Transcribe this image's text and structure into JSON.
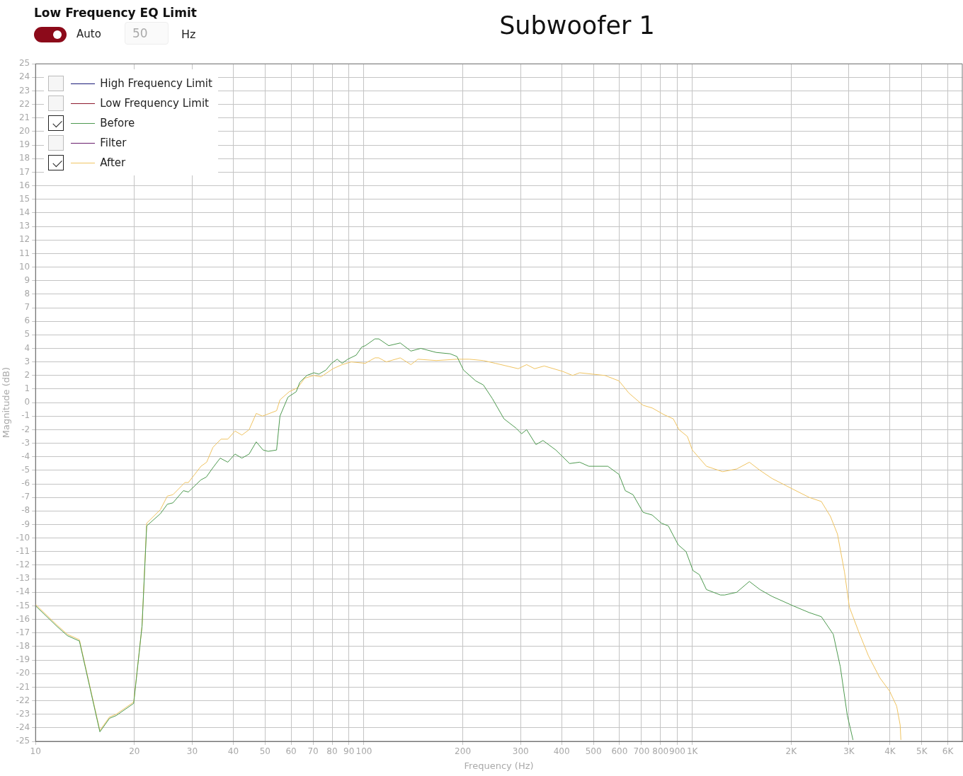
{
  "chart_data": {
    "type": "line",
    "title": "Subwoofer 1",
    "xlabel": "Frequency (Hz)",
    "ylabel": "Magnitude (dB)",
    "annotations": [
      "Low Frequency EQ Limit",
      "Auto",
      "50",
      "Hz"
    ],
    "log": "x",
    "xlim": [
      10,
      6640
    ],
    "xticks": [
      10,
      20,
      30,
      40,
      50,
      60,
      70,
      80,
      90,
      100,
      200,
      300,
      400,
      500,
      600,
      700,
      800,
      900,
      {
        "value": 1000,
        "label": "1K"
      },
      {
        "value": 2000,
        "label": "2K"
      },
      {
        "value": 3000,
        "label": "3K"
      },
      {
        "value": 4000,
        "label": "4K"
      },
      {
        "value": 5000,
        "label": "5K"
      },
      {
        "value": 6000,
        "label": "6K"
      }
    ],
    "ylim": [
      -25,
      25
    ],
    "yticks": [
      -25,
      -24,
      -23,
      -22,
      -21,
      -20,
      -19,
      -18,
      -17,
      -16,
      -15,
      -14,
      -13,
      -12,
      -11,
      -10,
      -9,
      -8,
      -7,
      -6,
      -5,
      -4,
      -3,
      -2,
      -1,
      0,
      1,
      2,
      3,
      4,
      5,
      6,
      7,
      8,
      9,
      10,
      11,
      12,
      13,
      14,
      15,
      16,
      17,
      18,
      19,
      20,
      21,
      22,
      23,
      24,
      25
    ],
    "grid": true,
    "legend": "top left",
    "marker": "none",
    "series": [
      {
        "name": "High Frequency Limit",
        "color": "#1c1c78"
      },
      {
        "name": "Low Frequency Limit",
        "color": "#8e1b2e"
      },
      {
        "name": "Before",
        "color": "#4e9a50",
        "x": [
          10,
          11.6,
          12.5,
          13.6,
          15.7,
          16.8,
          17.6,
          19.9,
          21.1,
          21.8,
          24.0,
          25.2,
          26.2,
          28.2,
          29.2,
          31.9,
          33.1,
          34.7,
          36.5,
          38.5,
          40.5,
          42.5,
          44.7,
          47.0,
          49.3,
          51.1,
          54.2,
          55.5,
          58.7,
          62.2,
          63.8,
          67.0,
          70.4,
          72.9,
          76.6,
          79.7,
          82.9,
          85.8,
          89.3,
          94.7,
          98.5,
          101,
          108,
          111,
          119,
          129,
          139,
          149,
          166,
          183,
          192,
          201,
          219,
          231,
          246,
          267,
          291,
          302,
          313,
          334,
          351,
          384,
          423,
          454,
          484,
          553,
          598,
          625,
          660,
          708,
          755,
          805,
          845,
          906,
          957,
          1005,
          1051,
          1104,
          1218,
          1255,
          1365,
          1492,
          1607,
          1748,
          2028,
          2271,
          2471,
          2687,
          2823,
          2966,
          3086
        ],
        "values": [
          -15,
          -16.5,
          -17.2,
          -17.6,
          -24.3,
          -23.3,
          -23.1,
          -22.2,
          -16.5,
          -9.1,
          -8.2,
          -7.5,
          -7.4,
          -6.5,
          -6.6,
          -5.7,
          -5.5,
          -4.8,
          -4.1,
          -4.4,
          -3.8,
          -4.1,
          -3.8,
          -2.9,
          -3.5,
          -3.6,
          -3.5,
          -1.0,
          0.4,
          0.8,
          1.5,
          2.0,
          2.2,
          2.1,
          2.4,
          2.9,
          3.2,
          2.9,
          3.2,
          3.5,
          4.1,
          4.2,
          4.7,
          4.7,
          4.2,
          4.4,
          3.8,
          4.0,
          3.7,
          3.6,
          3.4,
          2.4,
          1.6,
          1.3,
          0.3,
          -1.2,
          -1.9,
          -2.3,
          -2.0,
          -3.1,
          -2.8,
          -3.5,
          -4.5,
          -4.4,
          -4.7,
          -4.7,
          -5.3,
          -6.5,
          -6.8,
          -8.1,
          -8.3,
          -8.9,
          -9.1,
          -10.5,
          -11.0,
          -12.4,
          -12.7,
          -13.8,
          -14.2,
          -14.2,
          -14.0,
          -13.2,
          -13.8,
          -14.3,
          -15.0,
          -15.5,
          -15.8,
          -17.1,
          -19.5,
          -23.1,
          -24.9
        ]
      },
      {
        "name": "Filter",
        "color": "#6a1f6e"
      },
      {
        "name": "After",
        "color": "#f0c462",
        "x": [
          10,
          11.6,
          12.5,
          13.6,
          15.7,
          16.8,
          17.6,
          19.9,
          21.1,
          21.8,
          24.0,
          25.2,
          26.2,
          28.5,
          29.2,
          31.9,
          33.2,
          34.7,
          36.7,
          38.5,
          40.5,
          42.5,
          44.7,
          47.0,
          49.1,
          54.2,
          55.5,
          59.2,
          62.9,
          66.0,
          70.4,
          74.0,
          80.5,
          85.8,
          91.5,
          101,
          108,
          111,
          117,
          129,
          139,
          146,
          166,
          192,
          209,
          231,
          251,
          295,
          313,
          331,
          354,
          403,
          432,
          454,
          542,
          598,
          641,
          708,
          755,
          821,
          875,
          911,
          966,
          1000,
          1104,
          1237,
          1365,
          1492,
          1607,
          1748,
          2028,
          2271,
          2471,
          2634,
          2767,
          2907,
          3009,
          3210,
          3440,
          3722,
          3989,
          4191,
          4295,
          4317
        ],
        "values": [
          -14.9,
          -16.4,
          -17.1,
          -17.5,
          -24.2,
          -23.2,
          -23.0,
          -22.1,
          -16.5,
          -8.9,
          -7.9,
          -6.9,
          -6.8,
          -5.9,
          -5.9,
          -4.7,
          -4.4,
          -3.3,
          -2.7,
          -2.7,
          -2.1,
          -2.4,
          -2.0,
          -0.8,
          -1.0,
          -0.6,
          0.2,
          0.8,
          1.1,
          1.8,
          2.0,
          1.9,
          2.5,
          2.8,
          3.0,
          2.9,
          3.3,
          3.3,
          3.0,
          3.3,
          2.8,
          3.2,
          3.1,
          3.2,
          3.2,
          3.1,
          2.9,
          2.5,
          2.8,
          2.5,
          2.7,
          2.3,
          2.0,
          2.2,
          2.0,
          1.6,
          0.7,
          -0.2,
          -0.4,
          -0.9,
          -1.2,
          -2.0,
          -2.5,
          -3.5,
          -4.7,
          -5.1,
          -4.9,
          -4.4,
          -5.0,
          -5.6,
          -6.4,
          -7.0,
          -7.3,
          -8.4,
          -9.7,
          -12.5,
          -15.1,
          -16.9,
          -18.7,
          -20.3,
          -21.3,
          -22.4,
          -23.8,
          -24.9
        ]
      }
    ]
  }
}
